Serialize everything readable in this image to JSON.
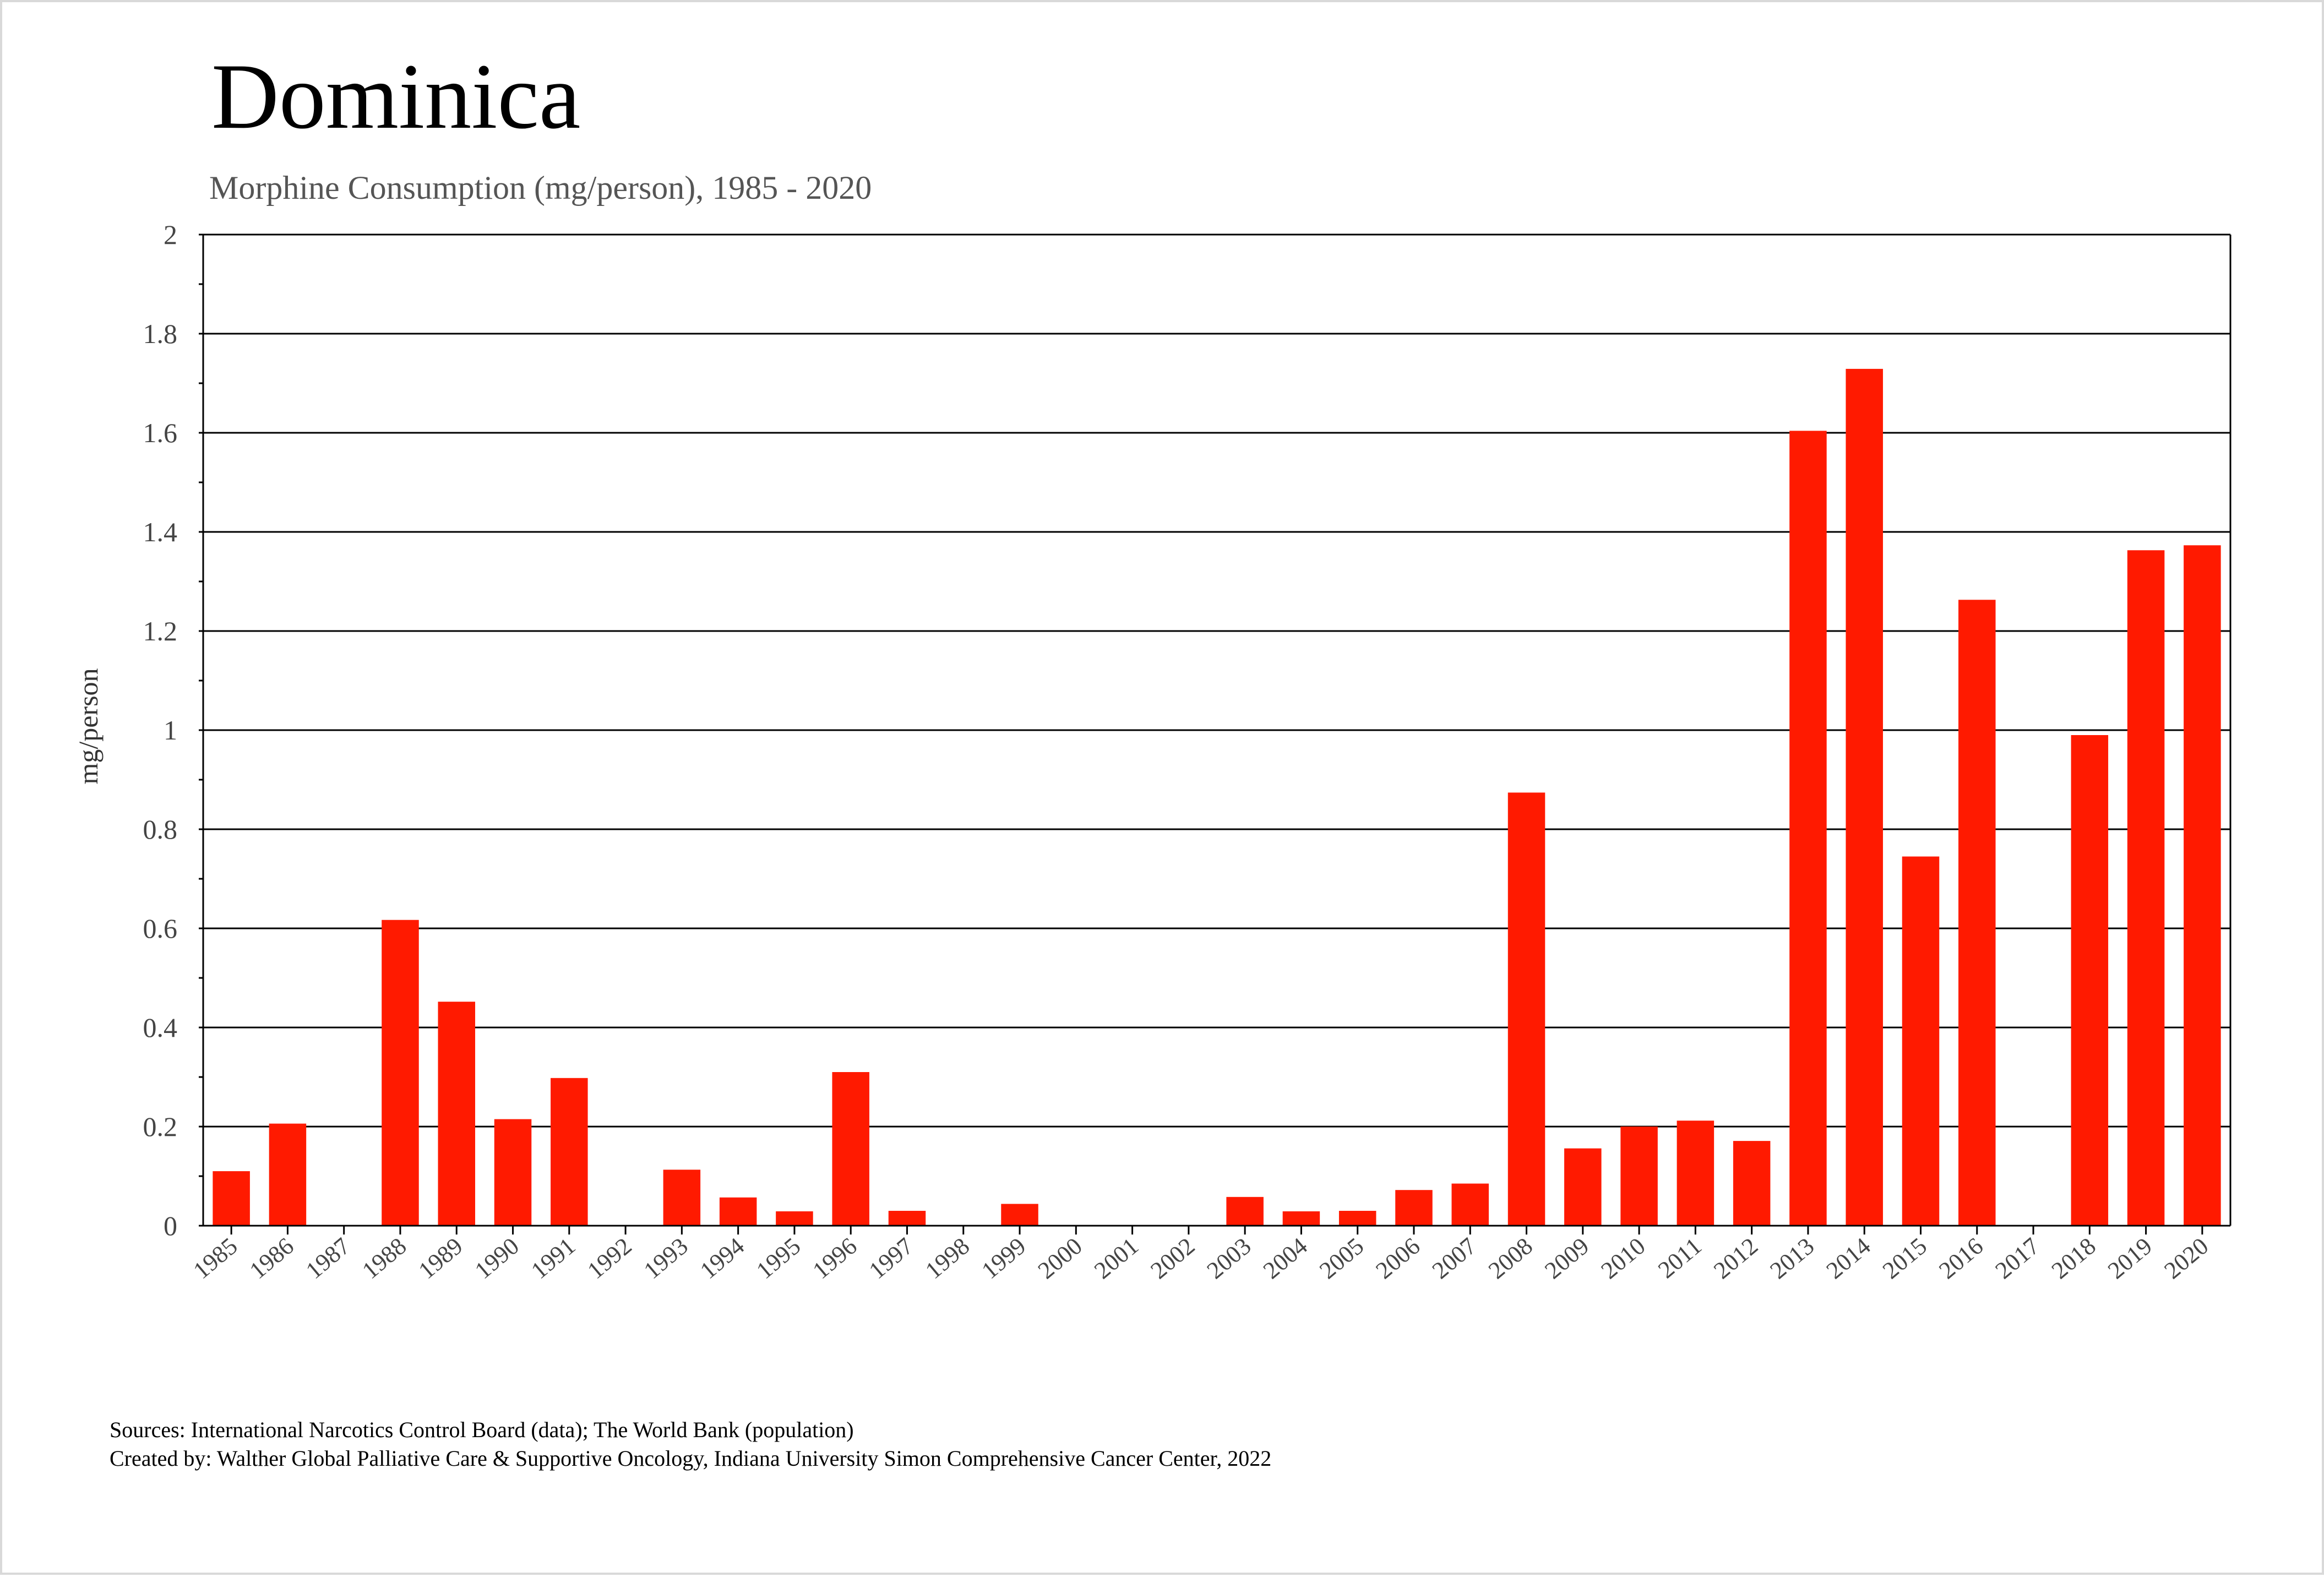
{
  "chart_data": {
    "type": "bar",
    "title": "Dominica",
    "subtitle": "Morphine Consumption (mg/person), 1985 - 2020",
    "ylabel": "mg/person",
    "xlabel": "",
    "ylim": [
      0,
      2
    ],
    "yticks": [
      "0",
      "0.2",
      "0.4",
      "0.6",
      "0.8",
      "1",
      "1.2",
      "1.4",
      "1.6",
      "1.8",
      "2"
    ],
    "grid": true,
    "bar_color": "#ff1a00",
    "categories": [
      "1985",
      "1986",
      "1987",
      "1988",
      "1989",
      "1990",
      "1991",
      "1992",
      "1993",
      "1994",
      "1995",
      "1996",
      "1997",
      "1998",
      "1999",
      "2000",
      "2001",
      "2002",
      "2003",
      "2004",
      "2005",
      "2006",
      "2007",
      "2008",
      "2009",
      "2010",
      "2011",
      "2012",
      "2013",
      "2014",
      "2015",
      "2016",
      "2017",
      "2018",
      "2019",
      "2020"
    ],
    "values": [
      0.11,
      0.206,
      0,
      0.617,
      0.452,
      0.215,
      0.298,
      0,
      0.113,
      0.057,
      0.029,
      0.31,
      0.03,
      0,
      0.044,
      0,
      0,
      0,
      0.058,
      0.029,
      0.03,
      0.072,
      0.085,
      0.874,
      0.156,
      0.2,
      0.212,
      0.171,
      1.604,
      1.729,
      0.745,
      1.263,
      0,
      0.99,
      1.363,
      1.373
    ]
  },
  "footnotes": {
    "sources": "Sources: International Narcotics Control Board (data); The World Bank (population)",
    "created_by": "Created by: Walther  Global Palliative Care & Supportive Oncology, Indiana University Simon Comprehensive Cancer Center, 2022"
  }
}
